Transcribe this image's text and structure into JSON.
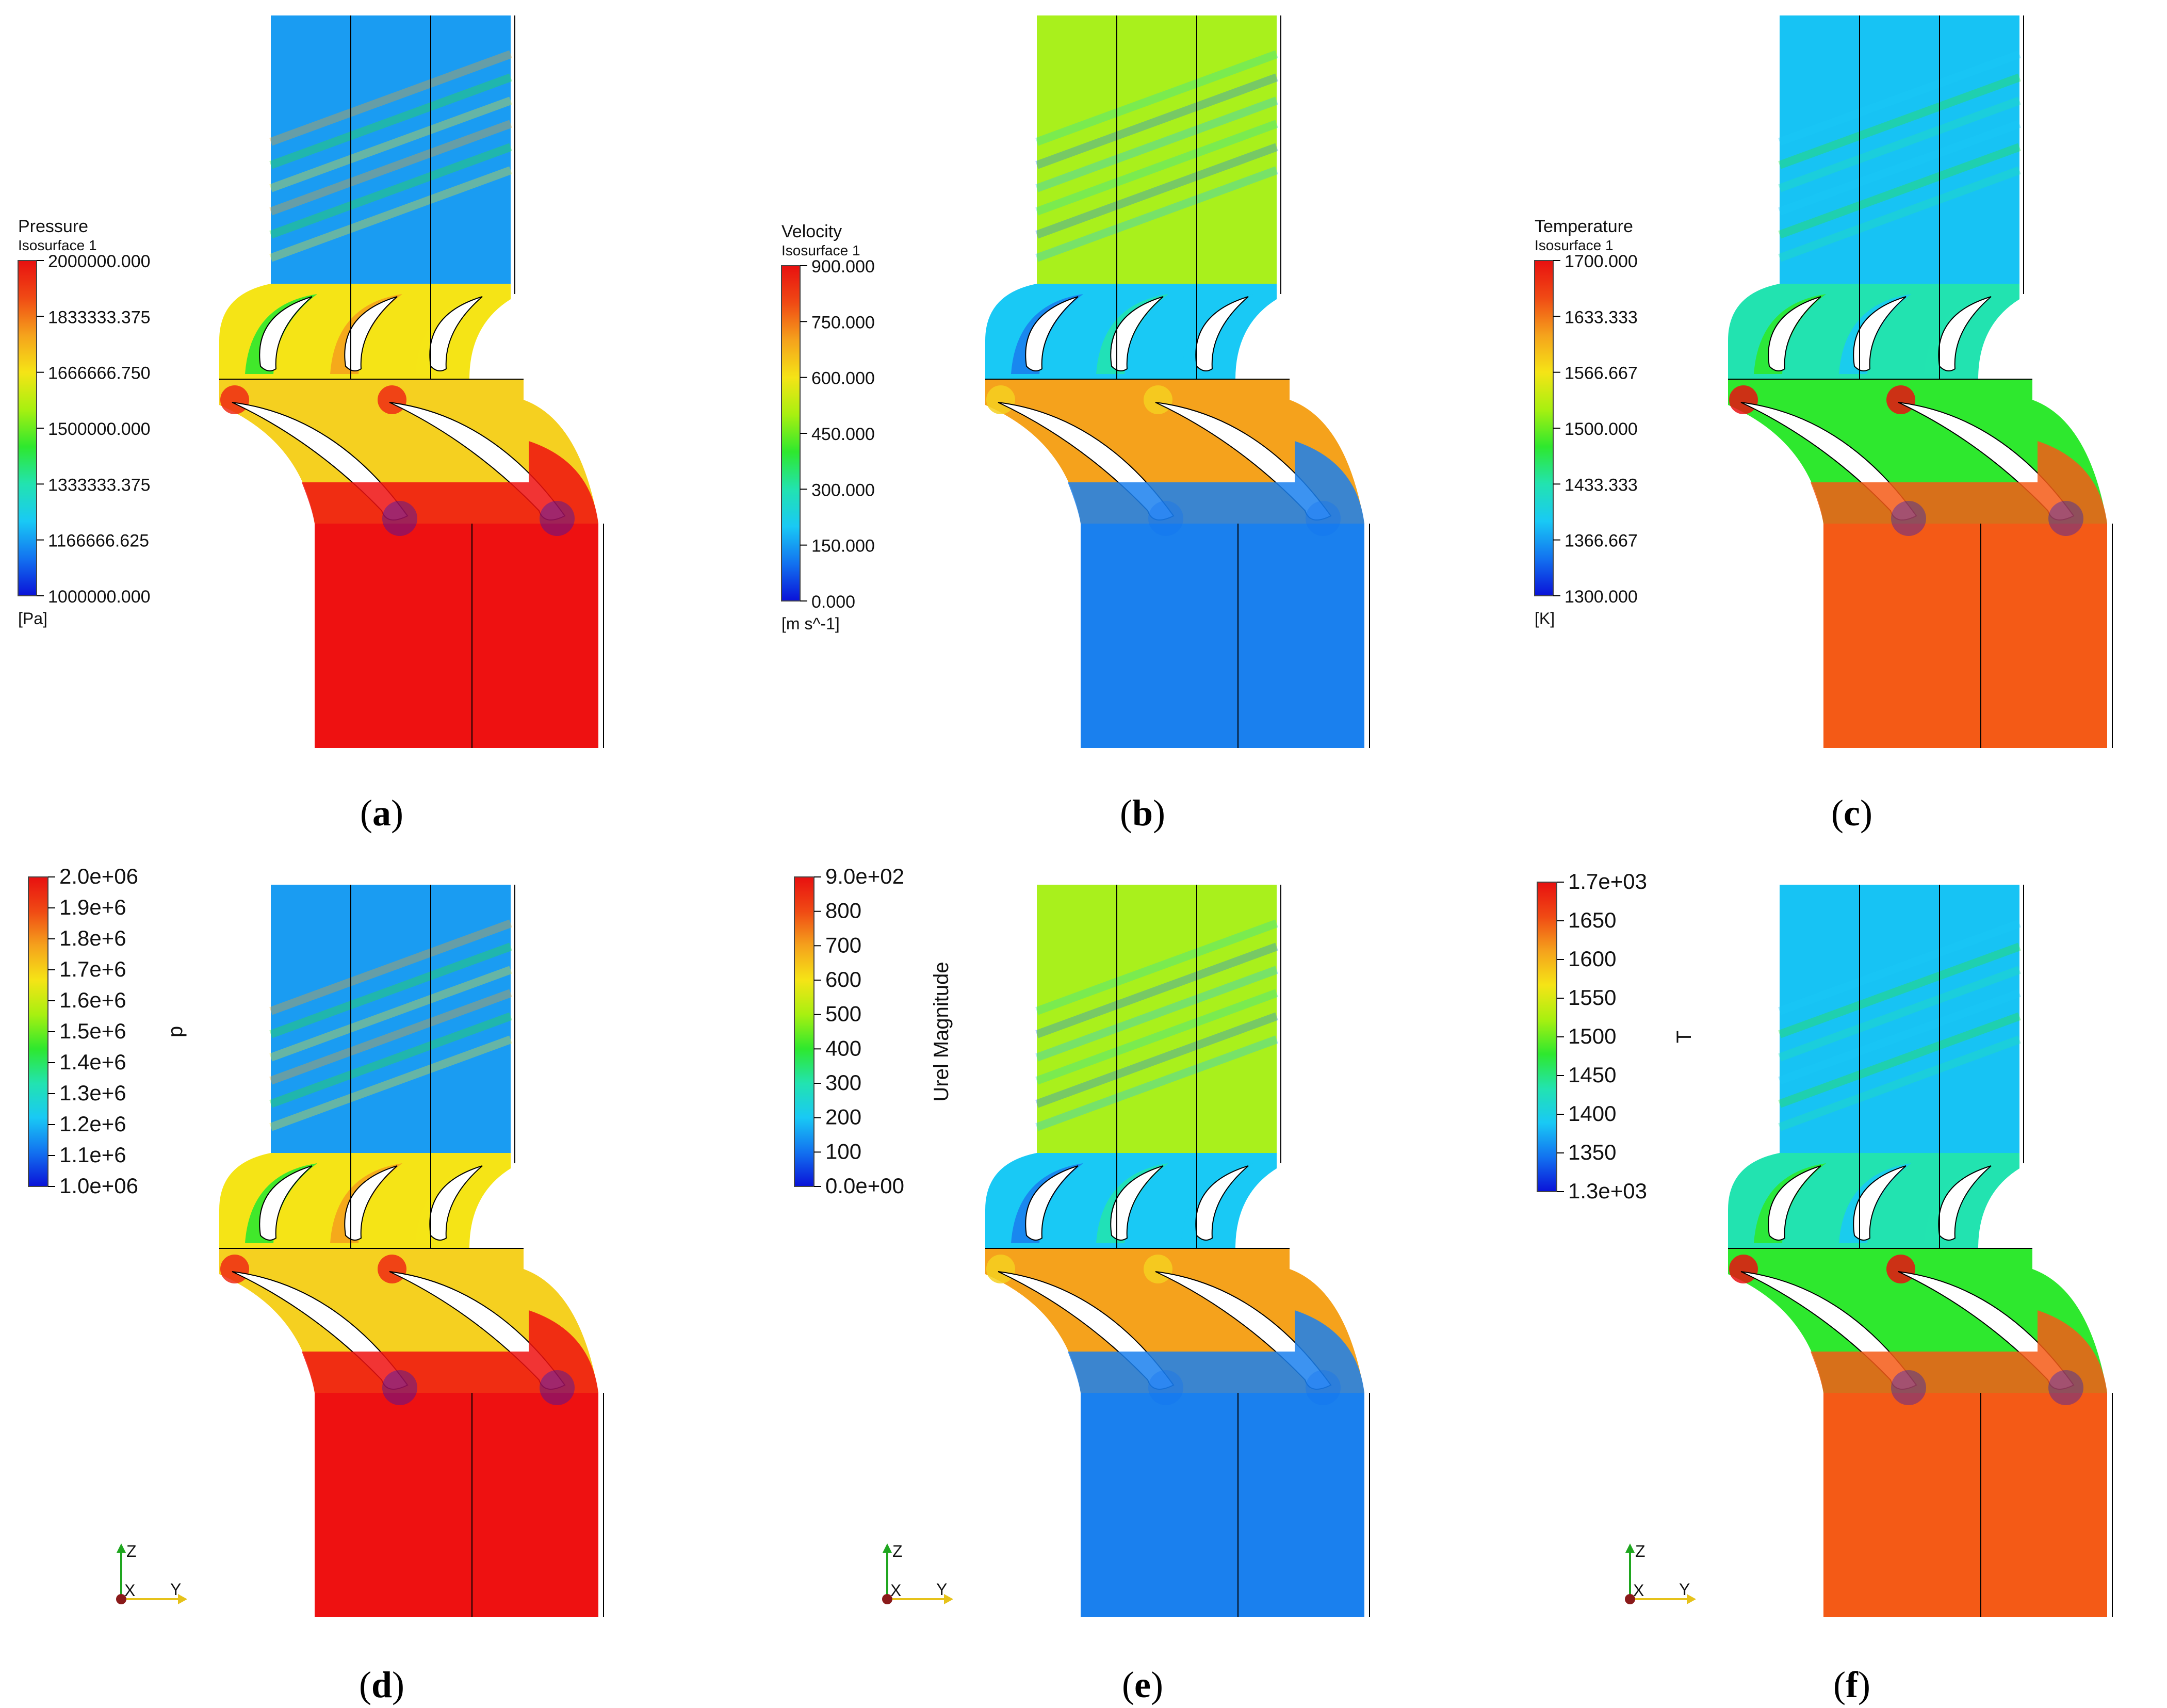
{
  "panels": [
    {
      "id": "a",
      "label": "a",
      "legend": {
        "title": "Pressure",
        "subtitle": "Isosurface 1",
        "ticks": [
          "2000000.000",
          "1833333.375",
          "1666666.750",
          "1500000.000",
          "1333333.375",
          "1166666.625",
          "1000000.000"
        ],
        "unit": "[Pa]"
      },
      "field": "pressure"
    },
    {
      "id": "b",
      "label": "b",
      "legend": {
        "title": "Velocity",
        "subtitle": "Isosurface 1",
        "ticks": [
          "900.000",
          "750.000",
          "600.000",
          "450.000",
          "300.000",
          "150.000",
          "0.000"
        ],
        "unit": "[m s^-1]"
      },
      "field": "velocity"
    },
    {
      "id": "c",
      "label": "c",
      "legend": {
        "title": "Temperature",
        "subtitle": "Isosurface 1",
        "ticks": [
          "1700.000",
          "1633.333",
          "1566.667",
          "1500.000",
          "1433.333",
          "1366.667",
          "1300.000"
        ],
        "unit": "[K]"
      },
      "field": "temperature"
    },
    {
      "id": "d",
      "label": "d",
      "legend": {
        "title": "p",
        "ticks": [
          "2.0e+06",
          "1.9e+6",
          "1.8e+6",
          "1.7e+6",
          "1.6e+6",
          "1.5e+6",
          "1.4e+6",
          "1.3e+6",
          "1.2e+6",
          "1.1e+6",
          "1.0e+06"
        ]
      },
      "field": "pressure",
      "triad": {
        "z": "Z",
        "x": "X",
        "y": "Y"
      }
    },
    {
      "id": "e",
      "label": "e",
      "legend": {
        "title": "Urel Magnitude",
        "ticks": [
          "9.0e+02",
          "800",
          "700",
          "600",
          "500",
          "400",
          "300",
          "200",
          "100",
          "0.0e+00"
        ]
      },
      "field": "velocity",
      "triad": {
        "z": "Z",
        "x": "X",
        "y": "Y"
      }
    },
    {
      "id": "f",
      "label": "f",
      "legend": {
        "title": "T",
        "ticks": [
          "1.7e+03",
          "1650",
          "1600",
          "1550",
          "1500",
          "1450",
          "1400",
          "1350",
          "1.3e+03"
        ]
      },
      "field": "temperature",
      "triad": {
        "z": "Z",
        "x": "X",
        "y": "Y"
      }
    }
  ],
  "colors": {
    "colormap": [
      "#0a12d8",
      "#1272f0",
      "#19c9f5",
      "#22e3b0",
      "#2ee82e",
      "#a8f010",
      "#f5e416",
      "#f5a21c",
      "#f04a14",
      "#e81010"
    ],
    "pressure_inlet": "#1a9cf2",
    "pressure_outlet": "#ee1111",
    "velocity_inlet": "#a9f01c",
    "velocity_outlet": "#1a80ee",
    "temperature_inlet": "#17c3f4",
    "temperature_outlet": "#f45a16",
    "mesh_line": "#000000",
    "triad_z": "#1fa61f",
    "triad_y": "#e6c21a",
    "triad_origin": "#8a1a1a"
  }
}
